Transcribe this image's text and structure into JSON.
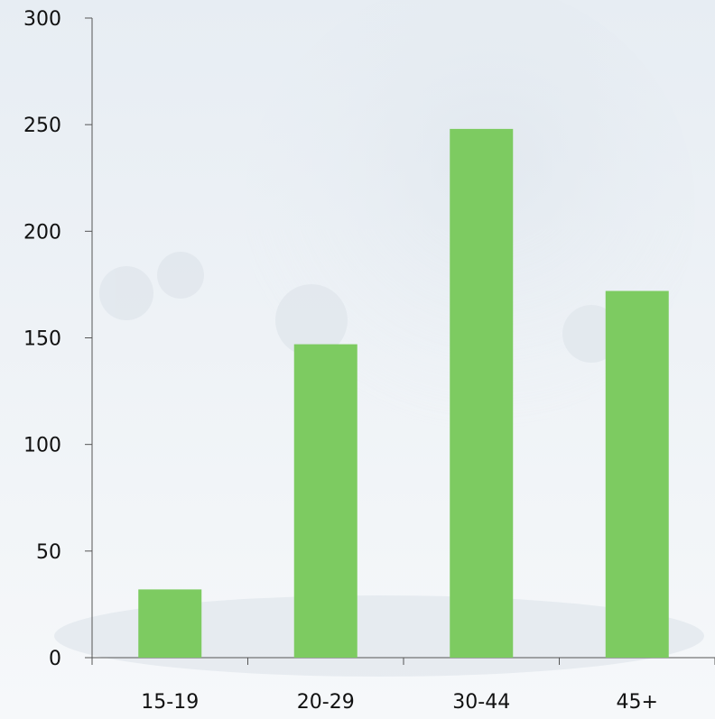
{
  "chart_data": {
    "type": "bar",
    "categories": [
      "15-19",
      "20-29",
      "30-44",
      "45+"
    ],
    "values": [
      32,
      147,
      248,
      172
    ],
    "ylim": [
      0,
      300
    ],
    "yticks": [
      0,
      50,
      100,
      150,
      200,
      250,
      300
    ],
    "grid": false,
    "legend": "none",
    "title": "",
    "xlabel": "",
    "ylabel": ""
  },
  "colors": {
    "bar": "#7dcb61",
    "axis": "#555555",
    "background_top": "#e7edf3",
    "background_bottom": "#f6f8fa"
  }
}
